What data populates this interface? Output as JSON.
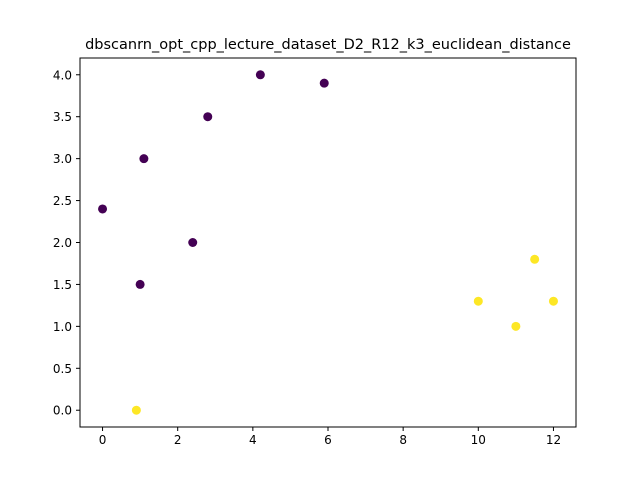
{
  "chart_data": {
    "type": "scatter",
    "title": "dbscanrn_opt_cpp_lecture_dataset_D2_R12_k3_euclidean_distance",
    "xlabel": "",
    "ylabel": "",
    "xlim": [
      -0.6,
      12.6
    ],
    "ylim": [
      -0.2,
      4.2
    ],
    "x_ticks": [
      0,
      2,
      4,
      6,
      8,
      10,
      12
    ],
    "x_tick_labels": [
      "0",
      "2",
      "4",
      "6",
      "8",
      "10",
      "12"
    ],
    "y_ticks": [
      0.0,
      0.5,
      1.0,
      1.5,
      2.0,
      2.5,
      3.0,
      3.5,
      4.0
    ],
    "y_tick_labels": [
      "0.0",
      "0.5",
      "1.0",
      "1.5",
      "2.0",
      "2.5",
      "3.0",
      "3.5",
      "4.0"
    ],
    "grid": false,
    "colors": {
      "cluster_0": "#440154",
      "cluster_1": "#fde725"
    },
    "points": [
      {
        "x": 0.0,
        "y": 2.4,
        "cluster": 0
      },
      {
        "x": 1.1,
        "y": 3.0,
        "cluster": 0
      },
      {
        "x": 1.0,
        "y": 1.5,
        "cluster": 0
      },
      {
        "x": 2.4,
        "y": 2.0,
        "cluster": 0
      },
      {
        "x": 2.8,
        "y": 3.5,
        "cluster": 0
      },
      {
        "x": 4.2,
        "y": 4.0,
        "cluster": 0
      },
      {
        "x": 5.9,
        "y": 3.9,
        "cluster": 0
      },
      {
        "x": 0.9,
        "y": 0.0,
        "cluster": 1
      },
      {
        "x": 10.0,
        "y": 1.3,
        "cluster": 1
      },
      {
        "x": 11.0,
        "y": 1.0,
        "cluster": 1
      },
      {
        "x": 11.5,
        "y": 1.8,
        "cluster": 1
      },
      {
        "x": 12.0,
        "y": 1.3,
        "cluster": 1
      }
    ]
  }
}
